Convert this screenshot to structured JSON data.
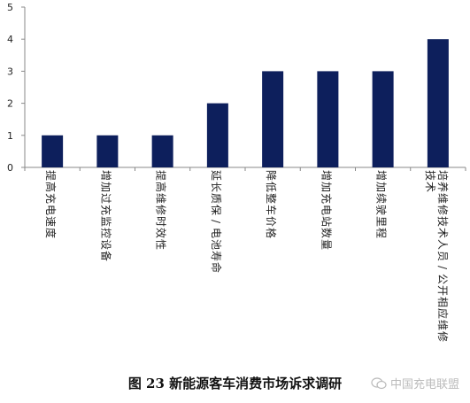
{
  "chart_data": {
    "type": "bar",
    "categories": [
      "提高充电速度",
      "增加过充监控设备",
      "提高维修时效性",
      "延长质保/电池寿命",
      "降低整车价格",
      "增加充电站数量",
      "增加续驶里程",
      "培养维修技术人员/公开相应维修技术"
    ],
    "values": [
      1,
      1,
      1,
      2,
      3,
      3,
      3,
      4
    ],
    "yticks": [
      "0",
      "1",
      "2",
      "3",
      "4",
      "5"
    ],
    "ylim": [
      0,
      5
    ],
    "title": "",
    "xlabel": "",
    "ylabel": "",
    "grid": false,
    "bar_color": "#0d1f5c",
    "axis_color": "#888888"
  },
  "caption": "图 23 新能源客车消费市场诉求调研",
  "watermark": {
    "text": "中国充电联盟",
    "icon": "wechat-icon"
  }
}
